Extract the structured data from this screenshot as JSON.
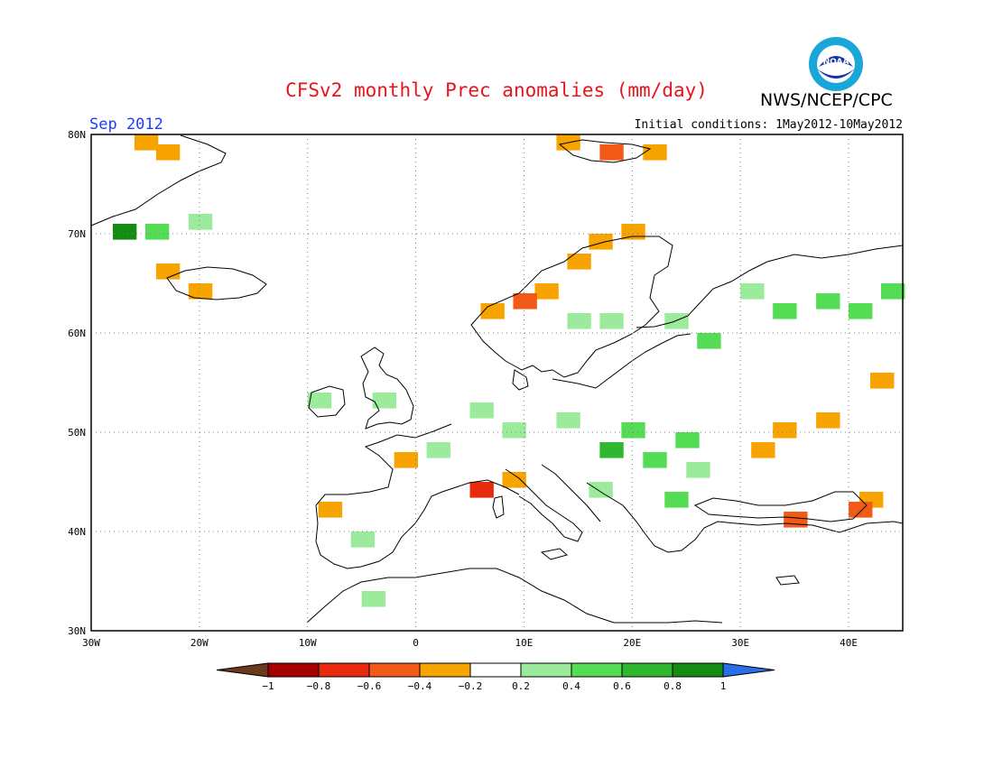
{
  "title": "CFSv2 monthly Prec anomalies (mm/day)",
  "credit": "NWS/NCEP/CPC",
  "logo_text": "NOAA",
  "target_month": "Sep 2012",
  "initial_conditions": "Initial conditions: 1May2012-10May2012",
  "map": {
    "lon_range": [
      -30,
      45
    ],
    "lat_range": [
      30,
      80
    ],
    "lon_ticks": [
      "30W",
      "20W",
      "10W",
      "0",
      "10E",
      "20E",
      "30E",
      "40E"
    ],
    "lat_ticks": [
      "80N",
      "70N",
      "60N",
      "50N",
      "40N",
      "30N"
    ]
  },
  "colorbar": {
    "labels": [
      "-1",
      "-0.8",
      "-0.6",
      "-0.4",
      "-0.2",
      "0.2",
      "0.4",
      "0.6",
      "0.8",
      "1"
    ],
    "colors": [
      "#6b3a1e",
      "#a50000",
      "#e82a0e",
      "#f25a18",
      "#f7a400",
      "#ffffff",
      "#9ceb9c",
      "#55dc55",
      "#2fb82f",
      "#148c14",
      "#2a6fe8"
    ]
  },
  "anomaly_cells": [
    {
      "lon": -25,
      "lat": 79,
      "value": -0.3
    },
    {
      "lon": -23,
      "lat": 78,
      "value": -0.3
    },
    {
      "lon": -27,
      "lat": 70,
      "value": 0.9
    },
    {
      "lon": -24,
      "lat": 70,
      "value": 0.5
    },
    {
      "lon": -20,
      "lat": 71,
      "value": 0.3
    },
    {
      "lon": -23,
      "lat": 66,
      "value": -0.3
    },
    {
      "lon": -20,
      "lat": 64,
      "value": -0.3
    },
    {
      "lon": 14,
      "lat": 79,
      "value": -0.3
    },
    {
      "lon": 18,
      "lat": 78,
      "value": -0.5
    },
    {
      "lon": 22,
      "lat": 78,
      "value": -0.3
    },
    {
      "lon": 17,
      "lat": 69,
      "value": -0.3
    },
    {
      "lon": 20,
      "lat": 70,
      "value": -0.3
    },
    {
      "lon": 15,
      "lat": 67,
      "value": -0.3
    },
    {
      "lon": 12,
      "lat": 64,
      "value": -0.3
    },
    {
      "lon": 7,
      "lat": 62,
      "value": -0.3
    },
    {
      "lon": 10,
      "lat": 63,
      "value": -0.5
    },
    {
      "lon": 15,
      "lat": 61,
      "value": 0.3
    },
    {
      "lon": 18,
      "lat": 61,
      "value": 0.3
    },
    {
      "lon": 24,
      "lat": 61,
      "value": 0.3
    },
    {
      "lon": 27,
      "lat": 59,
      "value": 0.4
    },
    {
      "lon": 31,
      "lat": 64,
      "value": 0.3
    },
    {
      "lon": 34,
      "lat": 62,
      "value": 0.5
    },
    {
      "lon": 38,
      "lat": 63,
      "value": 0.4
    },
    {
      "lon": 41,
      "lat": 62,
      "value": 0.5
    },
    {
      "lon": 44,
      "lat": 64,
      "value": 0.5
    },
    {
      "lon": -9,
      "lat": 53,
      "value": 0.3
    },
    {
      "lon": -3,
      "lat": 53,
      "value": 0.3
    },
    {
      "lon": 6,
      "lat": 52,
      "value": 0.3
    },
    {
      "lon": 9,
      "lat": 50,
      "value": 0.3
    },
    {
      "lon": 14,
      "lat": 51,
      "value": 0.3
    },
    {
      "lon": 20,
      "lat": 50,
      "value": 0.4
    },
    {
      "lon": 25,
      "lat": 49,
      "value": 0.4
    },
    {
      "lon": 18,
      "lat": 48,
      "value": 0.7
    },
    {
      "lon": 22,
      "lat": 47,
      "value": 0.5
    },
    {
      "lon": 26,
      "lat": 46,
      "value": 0.3
    },
    {
      "lon": 24,
      "lat": 43,
      "value": 0.4
    },
    {
      "lon": 17,
      "lat": 44,
      "value": 0.3
    },
    {
      "lon": 2,
      "lat": 48,
      "value": 0.3
    },
    {
      "lon": -1,
      "lat": 47,
      "value": -0.3
    },
    {
      "lon": 6,
      "lat": 44,
      "value": -0.7
    },
    {
      "lon": 9,
      "lat": 45,
      "value": -0.3
    },
    {
      "lon": -8,
      "lat": 42,
      "value": -0.3
    },
    {
      "lon": -5,
      "lat": 39,
      "value": 0.3
    },
    {
      "lon": -4,
      "lat": 33,
      "value": 0.3
    },
    {
      "lon": 34,
      "lat": 50,
      "value": -0.3
    },
    {
      "lon": 38,
      "lat": 51,
      "value": -0.3
    },
    {
      "lon": 32,
      "lat": 48,
      "value": -0.3
    },
    {
      "lon": 43,
      "lat": 55,
      "value": -0.3
    },
    {
      "lon": 35,
      "lat": 41,
      "value": -0.5
    },
    {
      "lon": 42,
      "lat": 43,
      "value": -0.3
    },
    {
      "lon": 41,
      "lat": 42,
      "value": -0.5
    }
  ]
}
